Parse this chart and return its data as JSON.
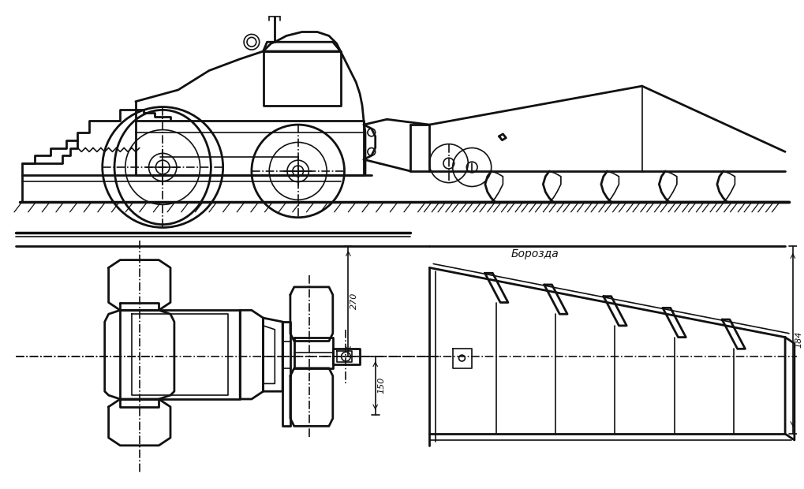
{
  "bg_color": "#ffffff",
  "line_color": "#111111",
  "fig_width": 10.2,
  "fig_height": 6.2,
  "dpi": 100,
  "label_270": "270",
  "label_150": "150",
  "label_184": "184",
  "label_borozda": "Борозда"
}
